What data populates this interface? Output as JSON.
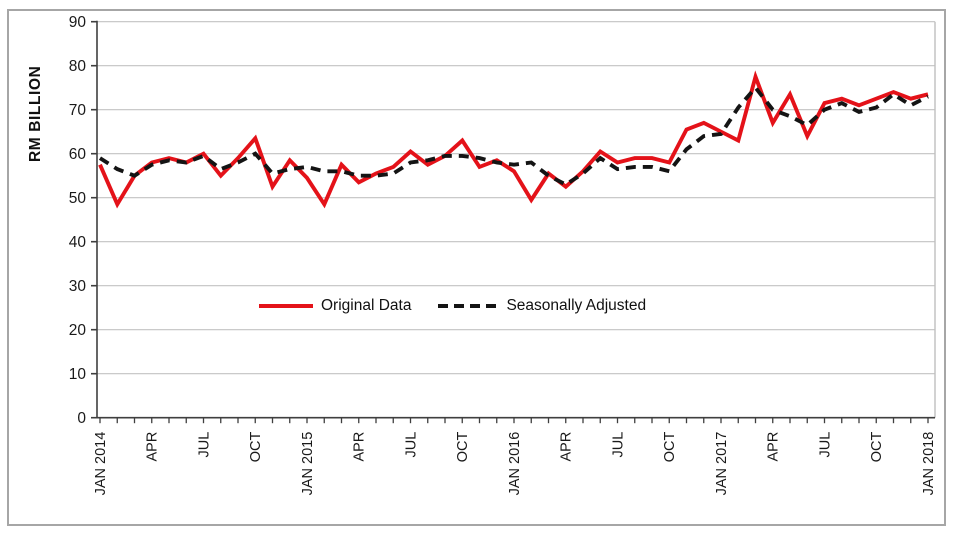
{
  "figure": {
    "background": "#ffffff",
    "border_color": "#a6a6a6"
  },
  "chart_data": {
    "type": "line",
    "title": "",
    "ylabel": "RM BILLION",
    "ylim": [
      0,
      90
    ],
    "ytick_interval": 10,
    "yticks": [
      0,
      10,
      20,
      30,
      40,
      50,
      60,
      70,
      80,
      90
    ],
    "grid": true,
    "x_start": "JAN 2014",
    "x_end": "JAN 2018",
    "frequency": "monthly",
    "x_tick_labels": [
      "JAN 2014",
      "",
      "",
      "APR",
      "",
      "",
      "JUL",
      "",
      "",
      "OCT",
      "",
      "",
      "JAN 2015",
      "",
      "",
      "APR",
      "",
      "",
      "JUL",
      "",
      "",
      "OCT",
      "",
      "",
      "JAN 2016",
      "",
      "",
      "APR",
      "",
      "",
      "JUL",
      "",
      "",
      "OCT",
      "",
      "",
      "JAN 2017",
      "",
      "",
      "APR",
      "",
      "",
      "JUL",
      "",
      "",
      "OCT",
      "",
      "",
      "JAN 2018"
    ],
    "legend_position": "center-middle",
    "axis_color": "#3f3f3f",
    "tick_label_color": "#1a1a1a",
    "grid_color": "#c3c3c3",
    "plot_right_border_color": "#bfbfbf",
    "series": [
      {
        "name": "Original Data",
        "color": "#e41219",
        "style": "solid",
        "values": [
          57.5,
          48.5,
          55,
          58,
          59,
          58,
          60,
          55,
          59,
          63.5,
          52.5,
          58.5,
          54.5,
          48.5,
          57.5,
          53.5,
          55.5,
          57,
          60.5,
          57.5,
          59.5,
          63,
          57,
          58.5,
          56,
          49.5,
          55.5,
          52.5,
          56,
          60.5,
          58,
          59,
          59,
          58,
          65.5,
          67,
          65,
          63,
          77.5,
          67,
          73.5,
          64,
          71.5,
          72.5,
          71,
          72.5,
          74,
          72.5,
          73.5
        ]
      },
      {
        "name": "Seasonally Adjusted",
        "color": "#141414",
        "style": "dashed",
        "values": [
          59,
          56.5,
          55,
          57.5,
          58.5,
          58,
          59.5,
          56.5,
          58,
          60,
          55.5,
          56.5,
          57,
          56,
          56,
          55,
          55,
          55.5,
          58,
          58.5,
          59.5,
          59.5,
          59,
          58,
          57.5,
          58,
          55,
          53,
          55.5,
          59,
          56.5,
          57,
          57,
          56,
          61,
          64,
          64.5,
          70.5,
          75,
          70,
          68.5,
          66.5,
          70,
          71.5,
          69.5,
          70.5,
          73.5,
          71,
          73
        ]
      }
    ]
  }
}
